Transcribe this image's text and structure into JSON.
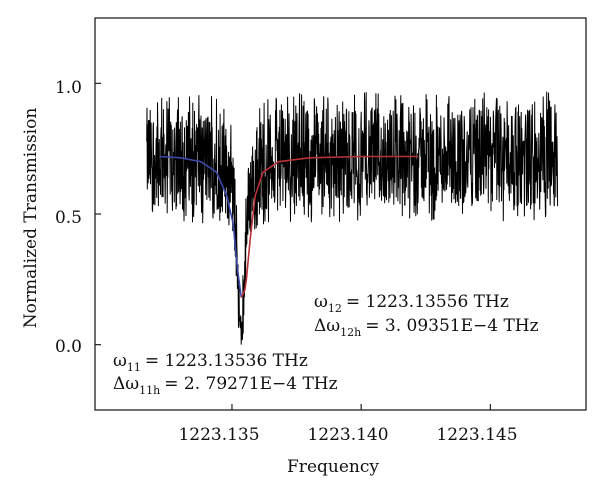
{
  "chart_data": {
    "type": "line",
    "title": "",
    "xlabel": "Frequency",
    "ylabel": "Normalized Transmission",
    "xlim": [
      1223.1297,
      1223.1487
    ],
    "ylim": [
      -0.25,
      1.25
    ],
    "x_ticks": [
      1223.135,
      1223.14,
      1223.145
    ],
    "x_tick_labels": [
      "1223.135",
      "1223.140",
      "1223.145"
    ],
    "y_ticks": [
      0.0,
      0.5,
      1.0
    ],
    "y_tick_labels": [
      "0.0",
      "0.5",
      "1.0"
    ],
    "grid": false,
    "legend": "none",
    "series": [
      {
        "role": "measured-noisy-transmission",
        "color": "#000000",
        "x_range": [
          1223.1317,
          1223.1476
        ],
        "baseline_mean": 0.72,
        "band": [
          0.51,
          0.89
        ],
        "spikes_to": 0.95,
        "dip_center": 1223.13536,
        "dip_min": 0.0
      },
      {
        "role": "lorentzian-fit-left",
        "color": "#3b48a8",
        "x": [
          1223.1322,
          1223.133,
          1223.1338,
          1223.1344,
          1223.1348,
          1223.13505,
          1223.1352,
          1223.13536
        ],
        "y": [
          0.72,
          0.715,
          0.7,
          0.66,
          0.57,
          0.46,
          0.3,
          0.18
        ]
      },
      {
        "role": "lorentzian-fit-right",
        "color": "#b8323a",
        "x": [
          1223.13536,
          1223.1355,
          1223.13556,
          1223.1357,
          1223.1359,
          1223.1362,
          1223.1368,
          1223.138,
          1223.14,
          1223.1422
        ],
        "y": [
          0.18,
          0.21,
          0.25,
          0.4,
          0.57,
          0.66,
          0.7,
          0.715,
          0.72,
          0.72
        ]
      }
    ],
    "annotations": [
      {
        "symbol": "ω",
        "subscript": "11",
        "value": "= 1223.13536 THz",
        "delta_symbol": "Δω",
        "delta_subscript": "11h",
        "delta_value": "= 2. 79271E−4 THz"
      },
      {
        "symbol": "ω",
        "subscript": "12",
        "value": "= 1223.13556 THz",
        "delta_symbol": "Δω",
        "delta_subscript": "12h",
        "delta_value": "= 3. 09351E−4 THz"
      }
    ]
  }
}
